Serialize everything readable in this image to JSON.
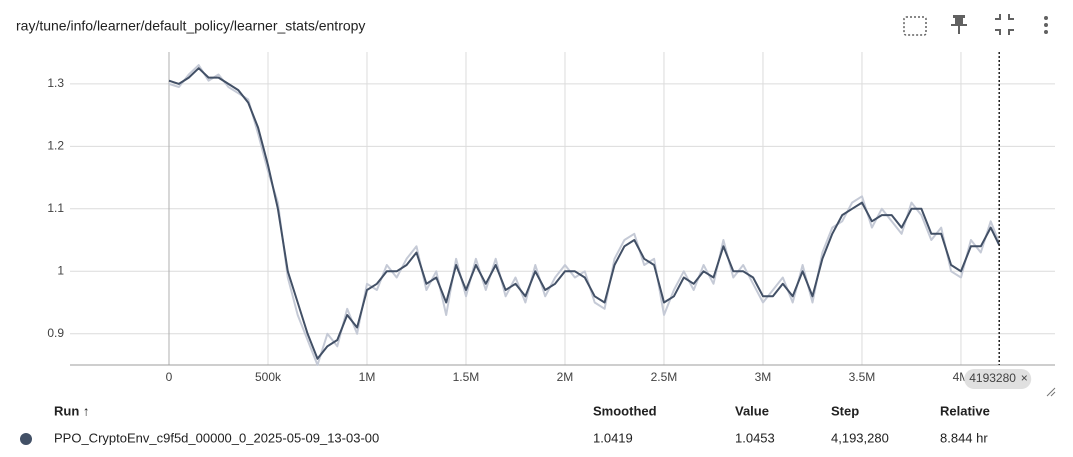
{
  "header": {
    "title": "ray/tune/info/learner/default_policy/learner_stats/entropy"
  },
  "chart_data": {
    "type": "line",
    "x": [
      0,
      50000,
      100000,
      150000,
      200000,
      250000,
      300000,
      350000,
      400000,
      450000,
      500000,
      550000,
      600000,
      650000,
      700000,
      750000,
      800000,
      850000,
      900000,
      950000,
      1000000,
      1050000,
      1100000,
      1150000,
      1200000,
      1250000,
      1300000,
      1350000,
      1400000,
      1450000,
      1500000,
      1550000,
      1600000,
      1650000,
      1700000,
      1750000,
      1800000,
      1850000,
      1900000,
      1950000,
      2000000,
      2050000,
      2100000,
      2150000,
      2200000,
      2250000,
      2300000,
      2350000,
      2400000,
      2450000,
      2500000,
      2550000,
      2600000,
      2650000,
      2700000,
      2750000,
      2800000,
      2850000,
      2900000,
      2950000,
      3000000,
      3050000,
      3100000,
      3150000,
      3200000,
      3250000,
      3300000,
      3350000,
      3400000,
      3450000,
      3500000,
      3550000,
      3600000,
      3650000,
      3700000,
      3750000,
      3800000,
      3850000,
      3900000,
      3950000,
      4000000,
      4050000,
      4100000,
      4150000,
      4193280
    ],
    "series": [
      {
        "color": "#c5cad6",
        "values": [
          1.3,
          1.295,
          1.315,
          1.33,
          1.305,
          1.315,
          1.295,
          1.285,
          1.275,
          1.22,
          1.16,
          1.11,
          0.99,
          0.93,
          0.89,
          0.85,
          0.9,
          0.88,
          0.94,
          0.9,
          0.98,
          0.97,
          1.01,
          0.99,
          1.02,
          1.04,
          0.97,
          1.0,
          0.93,
          1.02,
          0.96,
          1.02,
          0.97,
          1.02,
          0.96,
          0.99,
          0.95,
          1.01,
          0.96,
          0.99,
          1.01,
          0.99,
          1.0,
          0.95,
          0.94,
          1.02,
          1.05,
          1.06,
          1.01,
          1.02,
          0.93,
          0.97,
          1.0,
          0.97,
          1.01,
          0.98,
          1.05,
          0.99,
          1.01,
          0.98,
          0.95,
          0.97,
          0.99,
          0.95,
          1.01,
          0.95,
          1.03,
          1.07,
          1.08,
          1.11,
          1.12,
          1.07,
          1.1,
          1.08,
          1.06,
          1.11,
          1.09,
          1.05,
          1.07,
          1.0,
          0.99,
          1.05,
          1.03,
          1.08,
          1.0453
        ]
      },
      {
        "color": "#425066",
        "values": [
          1.305,
          1.3,
          1.31,
          1.325,
          1.31,
          1.31,
          1.3,
          1.29,
          1.27,
          1.23,
          1.17,
          1.1,
          1.0,
          0.95,
          0.9,
          0.86,
          0.88,
          0.89,
          0.93,
          0.91,
          0.97,
          0.98,
          1.0,
          1.0,
          1.01,
          1.03,
          0.98,
          0.99,
          0.95,
          1.01,
          0.97,
          1.01,
          0.98,
          1.01,
          0.97,
          0.98,
          0.96,
          1.0,
          0.97,
          0.98,
          1.0,
          1.0,
          0.99,
          0.96,
          0.95,
          1.01,
          1.04,
          1.05,
          1.02,
          1.01,
          0.95,
          0.96,
          0.99,
          0.98,
          1.0,
          0.99,
          1.04,
          1.0,
          1.0,
          0.99,
          0.96,
          0.96,
          0.98,
          0.96,
          1.0,
          0.96,
          1.02,
          1.06,
          1.09,
          1.1,
          1.11,
          1.08,
          1.09,
          1.09,
          1.07,
          1.1,
          1.1,
          1.06,
          1.06,
          1.01,
          1.0,
          1.04,
          1.04,
          1.07,
          1.0419
        ]
      }
    ],
    "xlim": [
      -500000,
      4475000
    ],
    "xticks": [
      0,
      {
        "value": 500000,
        "label": "500k"
      },
      {
        "value": 1000000,
        "label": "1M"
      },
      {
        "value": 1500000,
        "label": "1.5M"
      },
      {
        "value": 2000000,
        "label": "2M"
      },
      {
        "value": 2500000,
        "label": "2.5M"
      },
      {
        "value": 3000000,
        "label": "3M"
      },
      {
        "value": 3500000,
        "label": "3.5M"
      },
      {
        "value": 4000000,
        "label": "4M"
      }
    ],
    "ylim": [
      0.85,
      1.351
    ],
    "yticks": [
      0.9,
      1,
      1.1,
      1.2,
      1.3
    ],
    "grid": true,
    "cursor_step": 4193280
  },
  "table": {
    "columns": [
      "Run ↑",
      "Smoothed",
      "Value",
      "Step",
      "Relative"
    ],
    "rows": [
      [
        "PPO_CryptoEnv_c9f5d_00000_0_2025-05-09_13-03-00",
        "1.0419",
        "1.0453",
        "4,193,280",
        "8.844 hr"
      ]
    ]
  }
}
